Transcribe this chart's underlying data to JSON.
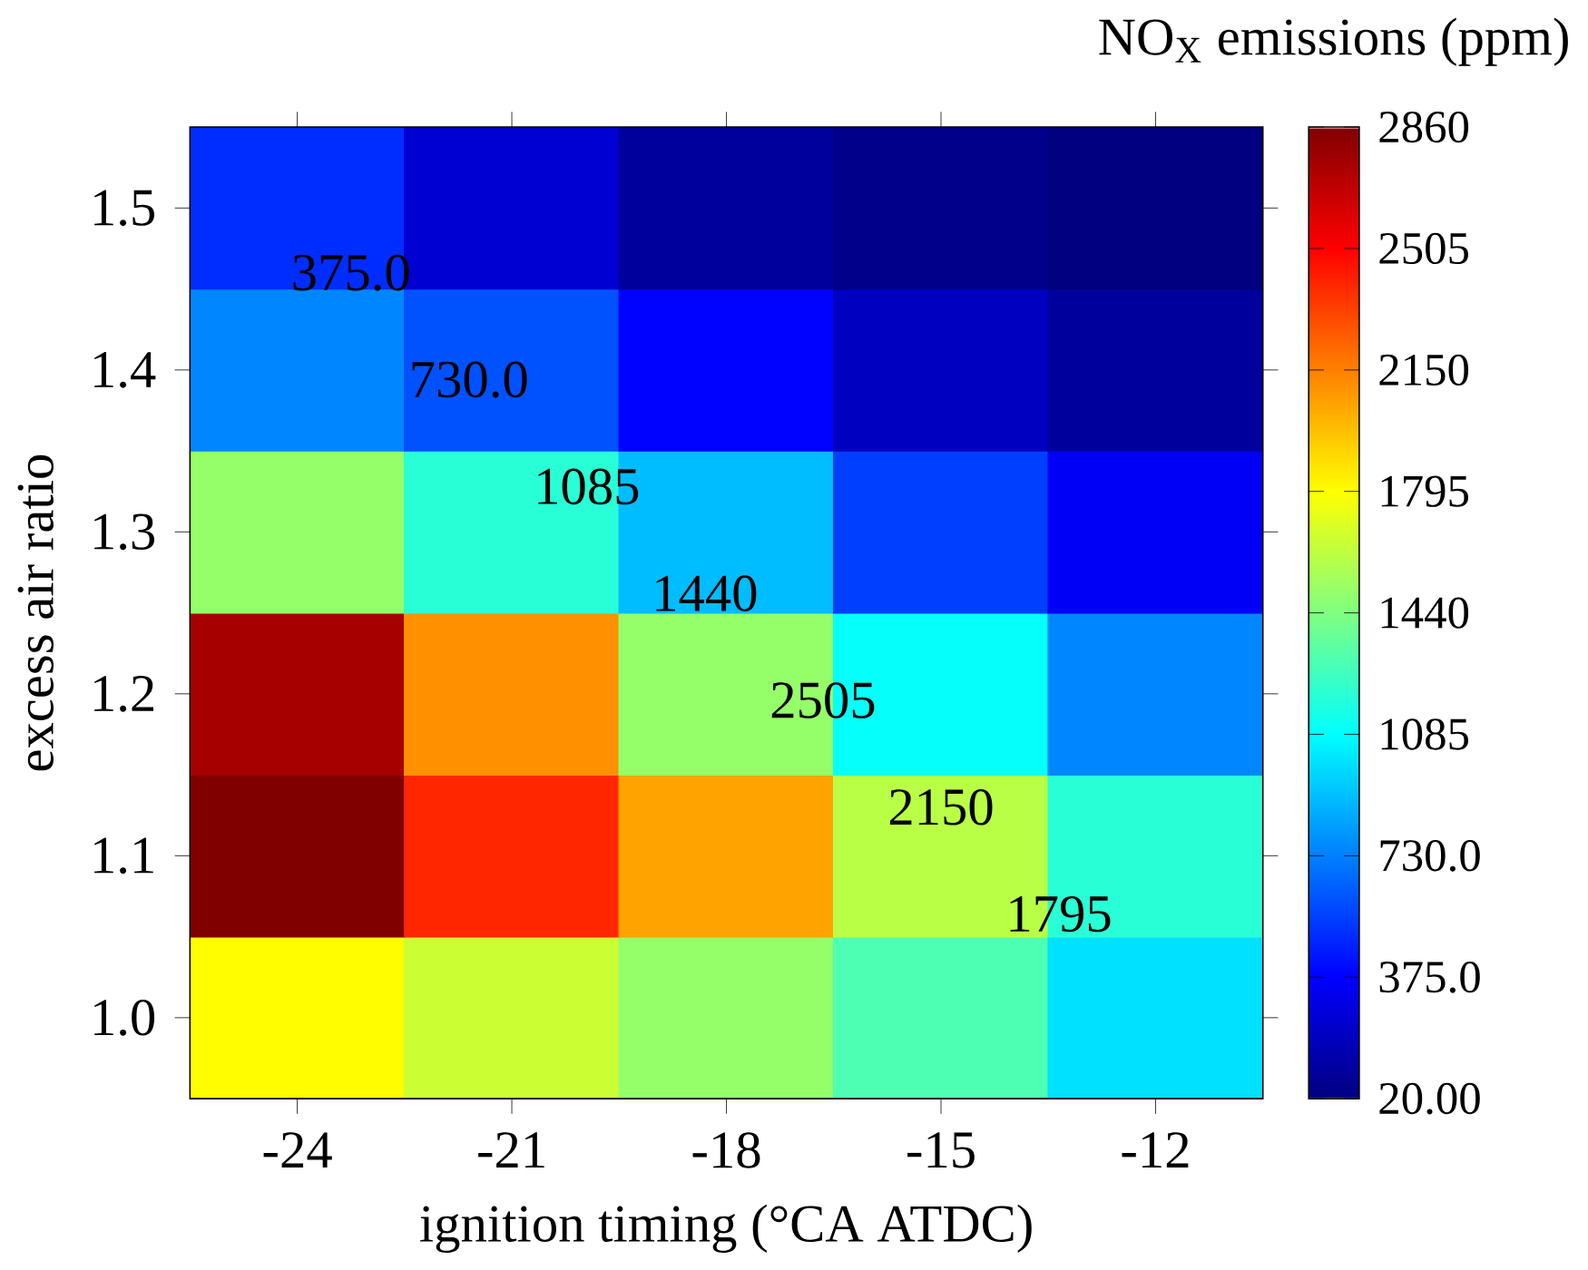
{
  "chart_data": {
    "type": "heatmap",
    "xlabel": "ignition timing (°CA ATDC)",
    "ylabel": "excess air ratio",
    "clabel": "NO$_{X}$ emissions (ppm)",
    "categories": [
      "-24",
      "-21",
      "-18",
      "-15",
      "-12"
    ],
    "y_categories": [
      "1.5",
      "1.4",
      "1.3",
      "1.2",
      "1.1",
      "1.0"
    ],
    "cells": [
      [
        500,
        250,
        100,
        50,
        20
      ],
      [
        750,
        600,
        380,
        200,
        100
      ],
      [
        1500,
        1200,
        900,
        550,
        350
      ],
      [
        2750,
        2100,
        1500,
        1100,
        750
      ],
      [
        2860,
        2400,
        2050,
        1600,
        1200
      ],
      [
        1800,
        1650,
        1500,
        1300,
        1000
      ]
    ],
    "clim": [
      20,
      2860
    ],
    "cticks": [
      {
        "value": 20,
        "label": "20.00"
      },
      {
        "value": 375,
        "label": "375.0"
      },
      {
        "value": 730,
        "label": "730.0"
      },
      1085,
      1440,
      1795,
      2150,
      2505,
      2860
    ],
    "annotations": [
      "375.0",
      "730.0",
      "1085",
      "1440",
      "2505",
      "2150",
      "1795"
    ]
  }
}
